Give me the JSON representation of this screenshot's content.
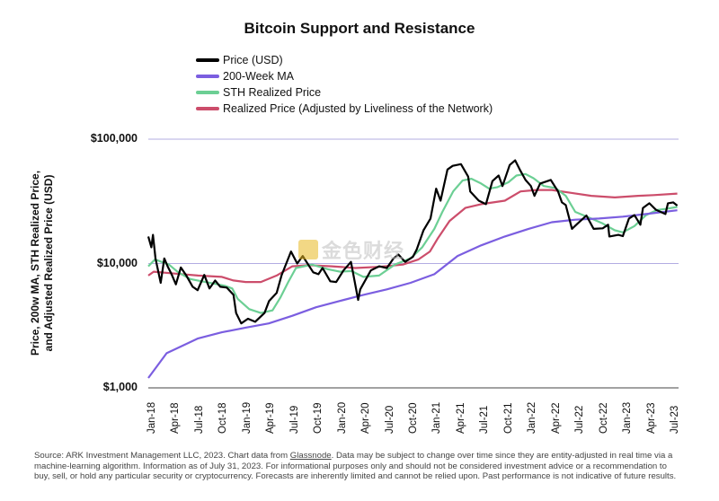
{
  "chart_data": {
    "type": "line",
    "title": "Bitcoin Support and Resistance",
    "ylabel_lines": [
      "Price, 200w MA, STH Realized Price,",
      "and Adjusted Realized Price (USD)"
    ],
    "yscale": "log",
    "ylim": [
      1000,
      100000
    ],
    "yticks": [
      {
        "value": 1000,
        "label": "$1,000"
      },
      {
        "value": 10000,
        "label": "$10,000"
      },
      {
        "value": 100000,
        "label": "$100,000"
      }
    ],
    "xlim": [
      "2017-12-20",
      "2023-08-05"
    ],
    "xticks": [
      "Jan-18",
      "Apr-18",
      "Jul-18",
      "Oct-18",
      "Jan-19",
      "Apr-19",
      "Jul-19",
      "Oct-19",
      "Jan-20",
      "Apr-20",
      "Jul-20",
      "Oct-20",
      "Jan-21",
      "Apr-21",
      "Jul-21",
      "Oct-21",
      "Jan-22",
      "Apr-22",
      "Jul-22",
      "Oct-22",
      "Jan-23",
      "Apr-23",
      "Jul-23"
    ],
    "grid": "horizontal",
    "legend_position": "top-left",
    "series": [
      {
        "name": "Price (USD)",
        "color": "#000000",
        "width": 2.2,
        "x": [
          "2017-12-20",
          "2018-01-01",
          "2018-01-07",
          "2018-01-17",
          "2018-02-06",
          "2018-02-20",
          "2018-03-05",
          "2018-03-20",
          "2018-04-06",
          "2018-04-25",
          "2018-05-15",
          "2018-06-10",
          "2018-06-29",
          "2018-07-25",
          "2018-08-14",
          "2018-09-05",
          "2018-09-25",
          "2018-10-20",
          "2018-11-15",
          "2018-11-25",
          "2018-12-15",
          "2019-01-10",
          "2019-02-07",
          "2019-03-15",
          "2019-04-02",
          "2019-05-01",
          "2019-05-20",
          "2019-06-26",
          "2019-07-20",
          "2019-08-10",
          "2019-09-20",
          "2019-10-10",
          "2019-10-26",
          "2019-11-25",
          "2019-12-18",
          "2020-01-15",
          "2020-02-13",
          "2020-03-12",
          "2020-03-20",
          "2020-04-30",
          "2020-06-01",
          "2020-07-01",
          "2020-07-27",
          "2020-08-15",
          "2020-09-10",
          "2020-10-10",
          "2020-10-25",
          "2020-11-20",
          "2020-12-17",
          "2021-01-08",
          "2021-01-25",
          "2021-02-21",
          "2021-03-13",
          "2021-04-14",
          "2021-05-12",
          "2021-05-20",
          "2021-06-22",
          "2021-07-20",
          "2021-08-14",
          "2021-09-07",
          "2021-09-22",
          "2021-10-20",
          "2021-11-10",
          "2021-11-28",
          "2021-12-20",
          "2022-01-10",
          "2022-01-24",
          "2022-02-15",
          "2022-03-28",
          "2022-04-25",
          "2022-05-10",
          "2022-05-25",
          "2022-06-18",
          "2022-07-10",
          "2022-08-13",
          "2022-09-10",
          "2022-10-15",
          "2022-11-05",
          "2022-11-10",
          "2022-12-15",
          "2023-01-01",
          "2023-01-25",
          "2023-02-15",
          "2023-03-10",
          "2023-03-20",
          "2023-04-14",
          "2023-05-10",
          "2023-06-15",
          "2023-06-25",
          "2023-07-15",
          "2023-07-31"
        ],
        "y": [
          16500,
          13500,
          17000,
          11000,
          7000,
          11000,
          9500,
          8200,
          6800,
          9300,
          8100,
          6500,
          6100,
          8100,
          6300,
          7300,
          6500,
          6400,
          5600,
          4000,
          3300,
          3600,
          3400,
          4000,
          5000,
          5800,
          8000,
          12500,
          10000,
          11500,
          8500,
          8200,
          9200,
          7200,
          7100,
          8800,
          10300,
          5100,
          6200,
          8800,
          9500,
          9200,
          11000,
          11800,
          10300,
          11300,
          13000,
          18500,
          23000,
          40000,
          32000,
          57000,
          61000,
          63000,
          50000,
          38000,
          32000,
          30000,
          46000,
          51000,
          42000,
          62000,
          67500,
          57000,
          47000,
          42000,
          35000,
          44000,
          47000,
          38000,
          31000,
          29500,
          19000,
          21000,
          24300,
          19000,
          19200,
          20500,
          16500,
          17000,
          16600,
          23000,
          24500,
          20500,
          28000,
          30500,
          27000,
          25000,
          30500,
          31000,
          29200
        ]
      },
      {
        "name": "200-Week MA",
        "color": "#7b5ee0",
        "width": 2.2,
        "x": [
          "2017-12-20",
          "2018-03-01",
          "2018-07-01",
          "2018-10-01",
          "2019-01-01",
          "2019-04-01",
          "2019-07-01",
          "2019-10-01",
          "2020-01-01",
          "2020-04-01",
          "2020-07-01",
          "2020-10-01",
          "2021-01-01",
          "2021-04-01",
          "2021-07-01",
          "2021-10-01",
          "2022-01-01",
          "2022-04-01",
          "2022-07-01",
          "2022-10-01",
          "2023-01-01",
          "2023-04-01",
          "2023-07-31"
        ],
        "y": [
          1200,
          1900,
          2500,
          2800,
          3050,
          3300,
          3800,
          4450,
          5000,
          5600,
          6200,
          7000,
          8200,
          11500,
          14000,
          16500,
          19000,
          21500,
          22500,
          23000,
          23800,
          25000,
          26800
        ]
      },
      {
        "name": "STH Realized Price",
        "color": "#6ccf94",
        "width": 2.2,
        "x": [
          "2017-12-20",
          "2018-01-15",
          "2018-02-15",
          "2018-03-10",
          "2018-04-15",
          "2018-06-01",
          "2018-07-15",
          "2018-09-15",
          "2018-10-15",
          "2018-11-10",
          "2018-12-01",
          "2019-01-15",
          "2019-03-01",
          "2019-04-15",
          "2019-05-15",
          "2019-06-15",
          "2019-07-15",
          "2019-09-15",
          "2019-11-15",
          "2020-01-01",
          "2020-02-15",
          "2020-04-01",
          "2020-06-01",
          "2020-08-01",
          "2020-10-01",
          "2020-11-15",
          "2021-01-01",
          "2021-02-01",
          "2021-03-15",
          "2021-04-20",
          "2021-05-25",
          "2021-07-01",
          "2021-08-01",
          "2021-09-01",
          "2021-10-15",
          "2021-11-15",
          "2021-12-20",
          "2022-01-20",
          "2022-03-01",
          "2022-04-15",
          "2022-05-25",
          "2022-07-01",
          "2022-09-01",
          "2022-10-15",
          "2022-12-01",
          "2023-01-01",
          "2023-02-15",
          "2023-04-01",
          "2023-05-15",
          "2023-06-15",
          "2023-07-31"
        ],
        "y": [
          9500,
          10800,
          10200,
          9800,
          8500,
          7500,
          7200,
          6800,
          6600,
          6300,
          5200,
          4300,
          4000,
          4200,
          5300,
          7100,
          9200,
          9800,
          9000,
          8600,
          8700,
          7800,
          8000,
          9800,
          11000,
          13500,
          19000,
          26000,
          38000,
          46500,
          48000,
          44000,
          40000,
          41000,
          45000,
          51000,
          52500,
          48500,
          42000,
          40500,
          35000,
          26000,
          23000,
          21000,
          18500,
          17800,
          20000,
          24500,
          27000,
          27500,
          28500
        ]
      },
      {
        "name": "Realized Price (Adjusted by Liveliness of the Network)",
        "color": "#cc4d6b",
        "width": 2.2,
        "x": [
          "2017-12-20",
          "2018-01-10",
          "2018-04-01",
          "2018-07-01",
          "2018-10-01",
          "2018-11-15",
          "2019-01-01",
          "2019-03-01",
          "2019-05-01",
          "2019-07-01",
          "2019-09-01",
          "2019-12-01",
          "2020-03-01",
          "2020-06-01",
          "2020-09-01",
          "2020-11-01",
          "2020-12-15",
          "2021-01-15",
          "2021-03-01",
          "2021-05-01",
          "2021-07-01",
          "2021-10-01",
          "2021-12-01",
          "2022-02-01",
          "2022-04-01",
          "2022-06-15",
          "2022-09-01",
          "2022-12-01",
          "2023-03-01",
          "2023-05-01",
          "2023-07-31"
        ],
        "y": [
          8000,
          8600,
          8300,
          8000,
          7800,
          7300,
          7100,
          7100,
          8000,
          9500,
          9700,
          9500,
          9200,
          9400,
          9800,
          10800,
          12500,
          16000,
          22000,
          28000,
          30000,
          32000,
          38000,
          39000,
          39000,
          37000,
          35000,
          34000,
          35000,
          35500,
          36500
        ]
      }
    ]
  },
  "legend": [
    {
      "label": "Price (USD)",
      "color": "#000000"
    },
    {
      "label": "200-Week MA",
      "color": "#7b5ee0"
    },
    {
      "label": "STH Realized Price",
      "color": "#6ccf94"
    },
    {
      "label": "Realized Price (Adjusted by Liveliness of the Network)",
      "color": "#cc4d6b"
    }
  ],
  "watermark": {
    "text": "金色财经",
    "color": "#e8b923"
  },
  "source": {
    "pre": "Source: ARK Investment Management LLC, 2023. Chart data from ",
    "link": "Glassnode",
    "post": ". Data may be subject to change over time since they are entity-adjusted in real time via a machine-learning algorithm. Information as of July 31, 2023. For informational purposes only and should not be considered investment advice or a recommendation to buy, sell, or hold any particular security or cryptocurrency. Forecasts are inherently limited and cannot be relied upon. Past performance is not indicative of future results."
  }
}
